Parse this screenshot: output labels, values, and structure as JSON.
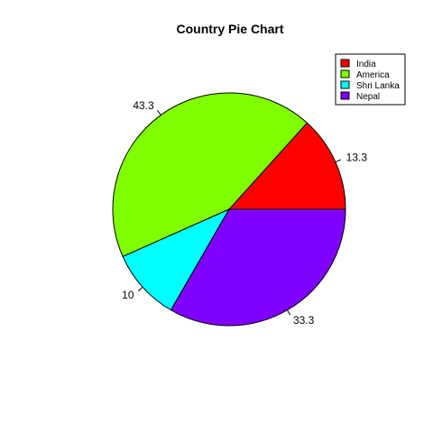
{
  "chart_data": {
    "type": "pie",
    "title": "Country Pie Chart",
    "slices": [
      {
        "name": "India",
        "value": 13.3,
        "label": "13.3",
        "color": "#FF0000"
      },
      {
        "name": "America",
        "value": 43.3,
        "label": "43.3",
        "color": "#80FF00"
      },
      {
        "name": "Shri Lanka",
        "value": 10,
        "label": "10",
        "color": "#00FFFF"
      },
      {
        "name": "Nepal",
        "value": 33.3,
        "label": "33.3",
        "color": "#8000FF"
      }
    ],
    "start": "3 o'clock",
    "direction": "counterclockwise",
    "legend": {
      "position": "top-right"
    }
  }
}
